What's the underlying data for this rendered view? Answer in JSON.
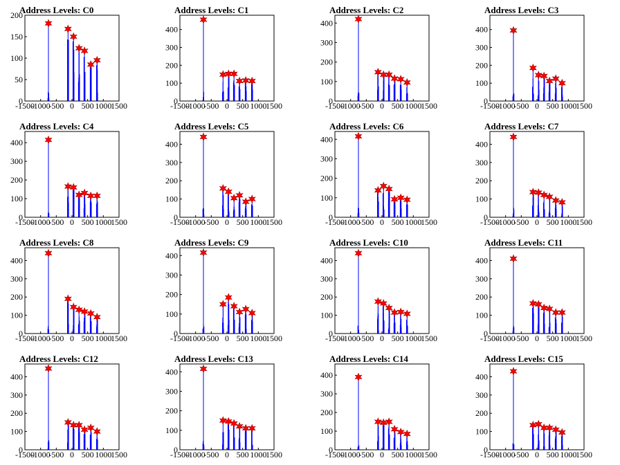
{
  "colors": {
    "spike": "#0000ff",
    "marker": "#ff0000",
    "marker_edge": "#990000",
    "axis": "#000000",
    "background": "#ffffff"
  },
  "chart_data": [
    {
      "type": "bar",
      "title": "Address Levels: C0",
      "xlim": [
        -1500,
        1500
      ],
      "ylim": [
        0,
        200
      ],
      "xticks": [
        "-1500",
        "-1000",
        "-500",
        "0",
        "500",
        "1000",
        "1500"
      ],
      "yticks": [
        "0",
        "50",
        "100",
        "150",
        "200"
      ],
      "peaks_x": [
        -750,
        -125,
        50,
        225,
        400,
        600,
        800
      ],
      "peak_markers": [
        181,
        168,
        150,
        123,
        117,
        85,
        95
      ],
      "grid": false,
      "legend": "none"
    },
    {
      "type": "bar",
      "title": "Address Levels: C1",
      "xlim": [
        -1500,
        1500
      ],
      "ylim": [
        0,
        480
      ],
      "xticks": [
        "-1500",
        "-1000",
        "-500",
        "0",
        "500",
        "1000",
        "1500"
      ],
      "yticks": [
        "0",
        "100",
        "200",
        "300",
        "400"
      ],
      "peaks_x": [
        -750,
        -125,
        50,
        225,
        400,
        600,
        800
      ],
      "peak_markers": [
        455,
        148,
        152,
        152,
        112,
        115,
        112
      ],
      "grid": false,
      "legend": "none"
    },
    {
      "type": "bar",
      "title": "Address Levels: C2",
      "xlim": [
        -1500,
        1500
      ],
      "ylim": [
        0,
        440
      ],
      "xticks": [
        "-1500",
        "-1000",
        "-500",
        "0",
        "500",
        "1000",
        "1500"
      ],
      "yticks": [
        "0",
        "100",
        "200",
        "300",
        "400"
      ],
      "peaks_x": [
        -750,
        -125,
        50,
        225,
        400,
        600,
        800
      ],
      "peak_markers": [
        420,
        148,
        135,
        135,
        115,
        112,
        95
      ],
      "grid": false,
      "legend": "none"
    },
    {
      "type": "bar",
      "title": "Address Levels: C3",
      "xlim": [
        -1500,
        1500
      ],
      "ylim": [
        0,
        480
      ],
      "xticks": [
        "-1500",
        "-1000",
        "-500",
        "0",
        "500",
        "1000",
        "1500"
      ],
      "yticks": [
        "0",
        "100",
        "200",
        "300",
        "400"
      ],
      "peaks_x": [
        -750,
        -125,
        50,
        225,
        400,
        600,
        800
      ],
      "peak_markers": [
        395,
        185,
        145,
        140,
        112,
        125,
        100
      ],
      "grid": false,
      "legend": "none"
    },
    {
      "type": "bar",
      "title": "Address Levels: C4",
      "xlim": [
        -1500,
        1500
      ],
      "ylim": [
        0,
        460
      ],
      "xticks": [
        "-1500",
        "-1000",
        "-500",
        "0",
        "500",
        "1000",
        "1500"
      ],
      "yticks": [
        "0",
        "100",
        "200",
        "300",
        "400"
      ],
      "peaks_x": [
        -750,
        -125,
        50,
        225,
        400,
        600,
        800
      ],
      "peak_markers": [
        415,
        165,
        160,
        120,
        130,
        115,
        115
      ],
      "grid": false,
      "legend": "none"
    },
    {
      "type": "bar",
      "title": "Address Levels: C5",
      "xlim": [
        -1500,
        1500
      ],
      "ylim": [
        0,
        470
      ],
      "xticks": [
        "-1500",
        "-1000",
        "-500",
        "0",
        "500",
        "1000",
        "1500"
      ],
      "yticks": [
        "0",
        "100",
        "200",
        "300",
        "400"
      ],
      "peaks_x": [
        -750,
        -125,
        50,
        225,
        400,
        600,
        800
      ],
      "peak_markers": [
        440,
        158,
        140,
        105,
        120,
        85,
        100
      ],
      "grid": false,
      "legend": "none"
    },
    {
      "type": "bar",
      "title": "Address Levels: C6",
      "xlim": [
        -1500,
        1500
      ],
      "ylim": [
        0,
        440
      ],
      "xticks": [
        "-1500",
        "-1000",
        "-500",
        "0",
        "500",
        "1000",
        "1500"
      ],
      "yticks": [
        "0",
        "100",
        "200",
        "300",
        "400"
      ],
      "peaks_x": [
        -750,
        -125,
        50,
        225,
        400,
        600,
        800
      ],
      "peak_markers": [
        415,
        138,
        160,
        145,
        92,
        100,
        90
      ],
      "grid": false,
      "legend": "none"
    },
    {
      "type": "bar",
      "title": "Address Levels: C7",
      "xlim": [
        -1500,
        1500
      ],
      "ylim": [
        0,
        470
      ],
      "xticks": [
        "-1500",
        "-1000",
        "-500",
        "0",
        "500",
        "1000",
        "1500"
      ],
      "yticks": [
        "0",
        "100",
        "200",
        "300",
        "400"
      ],
      "peaks_x": [
        -750,
        -125,
        50,
        225,
        400,
        600,
        800
      ],
      "peak_markers": [
        440,
        138,
        135,
        122,
        112,
        92,
        82
      ],
      "grid": false,
      "legend": "none"
    },
    {
      "type": "bar",
      "title": "Address Levels: C8",
      "xlim": [
        -1500,
        1500
      ],
      "ylim": [
        0,
        470
      ],
      "xticks": [
        "-1500",
        "-1000",
        "-500",
        "0",
        "500",
        "1000",
        "1500"
      ],
      "yticks": [
        "0",
        "100",
        "200",
        "300",
        "400"
      ],
      "peaks_x": [
        -750,
        -125,
        50,
        225,
        400,
        600,
        800
      ],
      "peak_markers": [
        440,
        190,
        145,
        130,
        120,
        110,
        90
      ],
      "grid": false,
      "legend": "none"
    },
    {
      "type": "bar",
      "title": "Address Levels: C9",
      "xlim": [
        -1500,
        1500
      ],
      "ylim": [
        0,
        440
      ],
      "xticks": [
        "-1500",
        "-1000",
        "-500",
        "0",
        "500",
        "1000",
        "1500"
      ],
      "yticks": [
        "0",
        "100",
        "200",
        "300",
        "400"
      ],
      "peaks_x": [
        -750,
        -125,
        50,
        225,
        400,
        600,
        800
      ],
      "peak_markers": [
        415,
        150,
        185,
        140,
        110,
        125,
        105
      ],
      "grid": false,
      "legend": "none"
    },
    {
      "type": "bar",
      "title": "Address Levels: C10",
      "xlim": [
        -1500,
        1500
      ],
      "ylim": [
        0,
        470
      ],
      "xticks": [
        "-1500",
        "-1000",
        "-500",
        "0",
        "500",
        "1000",
        "1500"
      ],
      "yticks": [
        "0",
        "100",
        "200",
        "300",
        "400"
      ],
      "peaks_x": [
        -750,
        -125,
        50,
        225,
        400,
        600,
        800
      ],
      "peak_markers": [
        440,
        175,
        165,
        140,
        115,
        118,
        108
      ],
      "grid": false,
      "legend": "none"
    },
    {
      "type": "bar",
      "title": "Address Levels: C11",
      "xlim": [
        -1500,
        1500
      ],
      "ylim": [
        0,
        470
      ],
      "xticks": [
        "-1500",
        "-1000",
        "-500",
        "0",
        "500",
        "1000",
        "1500"
      ],
      "yticks": [
        "0",
        "100",
        "200",
        "300",
        "400"
      ],
      "peaks_x": [
        -750,
        -125,
        50,
        225,
        400,
        600,
        800
      ],
      "peak_markers": [
        410,
        165,
        160,
        140,
        135,
        115,
        115
      ],
      "grid": false,
      "legend": "none"
    },
    {
      "type": "bar",
      "title": "Address Levels: C12",
      "xlim": [
        -1500,
        1500
      ],
      "ylim": [
        0,
        470
      ],
      "xticks": [
        "-1500",
        "-1000",
        "-500",
        "0",
        "500",
        "1000",
        "1500"
      ],
      "yticks": [
        "0",
        "100",
        "200",
        "300",
        "400"
      ],
      "peaks_x": [
        -750,
        -125,
        50,
        225,
        400,
        600,
        800
      ],
      "peak_markers": [
        445,
        150,
        135,
        135,
        110,
        120,
        100
      ],
      "grid": false,
      "legend": "none"
    },
    {
      "type": "bar",
      "title": "Address Levels: C13",
      "xlim": [
        -1500,
        1500
      ],
      "ylim": [
        0,
        440
      ],
      "xticks": [
        "-1500",
        "-1000",
        "-500",
        "0",
        "500",
        "1000",
        "1500"
      ],
      "yticks": [
        "0",
        "100",
        "200",
        "300",
        "400"
      ],
      "peaks_x": [
        -750,
        -125,
        50,
        225,
        400,
        600,
        800
      ],
      "peak_markers": [
        415,
        150,
        145,
        135,
        120,
        110,
        110
      ],
      "grid": false,
      "legend": "none"
    },
    {
      "type": "bar",
      "title": "Address Levels: C14",
      "xlim": [
        -1500,
        1500
      ],
      "ylim": [
        0,
        460
      ],
      "xticks": [
        "-1500",
        "-1000",
        "-500",
        "0",
        "500",
        "1000",
        "1500"
      ],
      "yticks": [
        "0",
        "100",
        "200",
        "300",
        "400"
      ],
      "peaks_x": [
        -750,
        -125,
        50,
        225,
        400,
        600,
        800
      ],
      "peak_markers": [
        390,
        150,
        145,
        150,
        110,
        95,
        85
      ],
      "grid": false,
      "legend": "none"
    },
    {
      "type": "bar",
      "title": "Address Levels: C15",
      "xlim": [
        -1500,
        1500
      ],
      "ylim": [
        0,
        470
      ],
      "xticks": [
        "-1500",
        "-1000",
        "-500",
        "0",
        "500",
        "1000",
        "1500"
      ],
      "yticks": [
        "0",
        "100",
        "200",
        "300",
        "400"
      ],
      "peaks_x": [
        -750,
        -125,
        50,
        225,
        400,
        600,
        800
      ],
      "peak_markers": [
        430,
        135,
        140,
        120,
        120,
        110,
        95
      ],
      "grid": false,
      "legend": "none"
    }
  ]
}
